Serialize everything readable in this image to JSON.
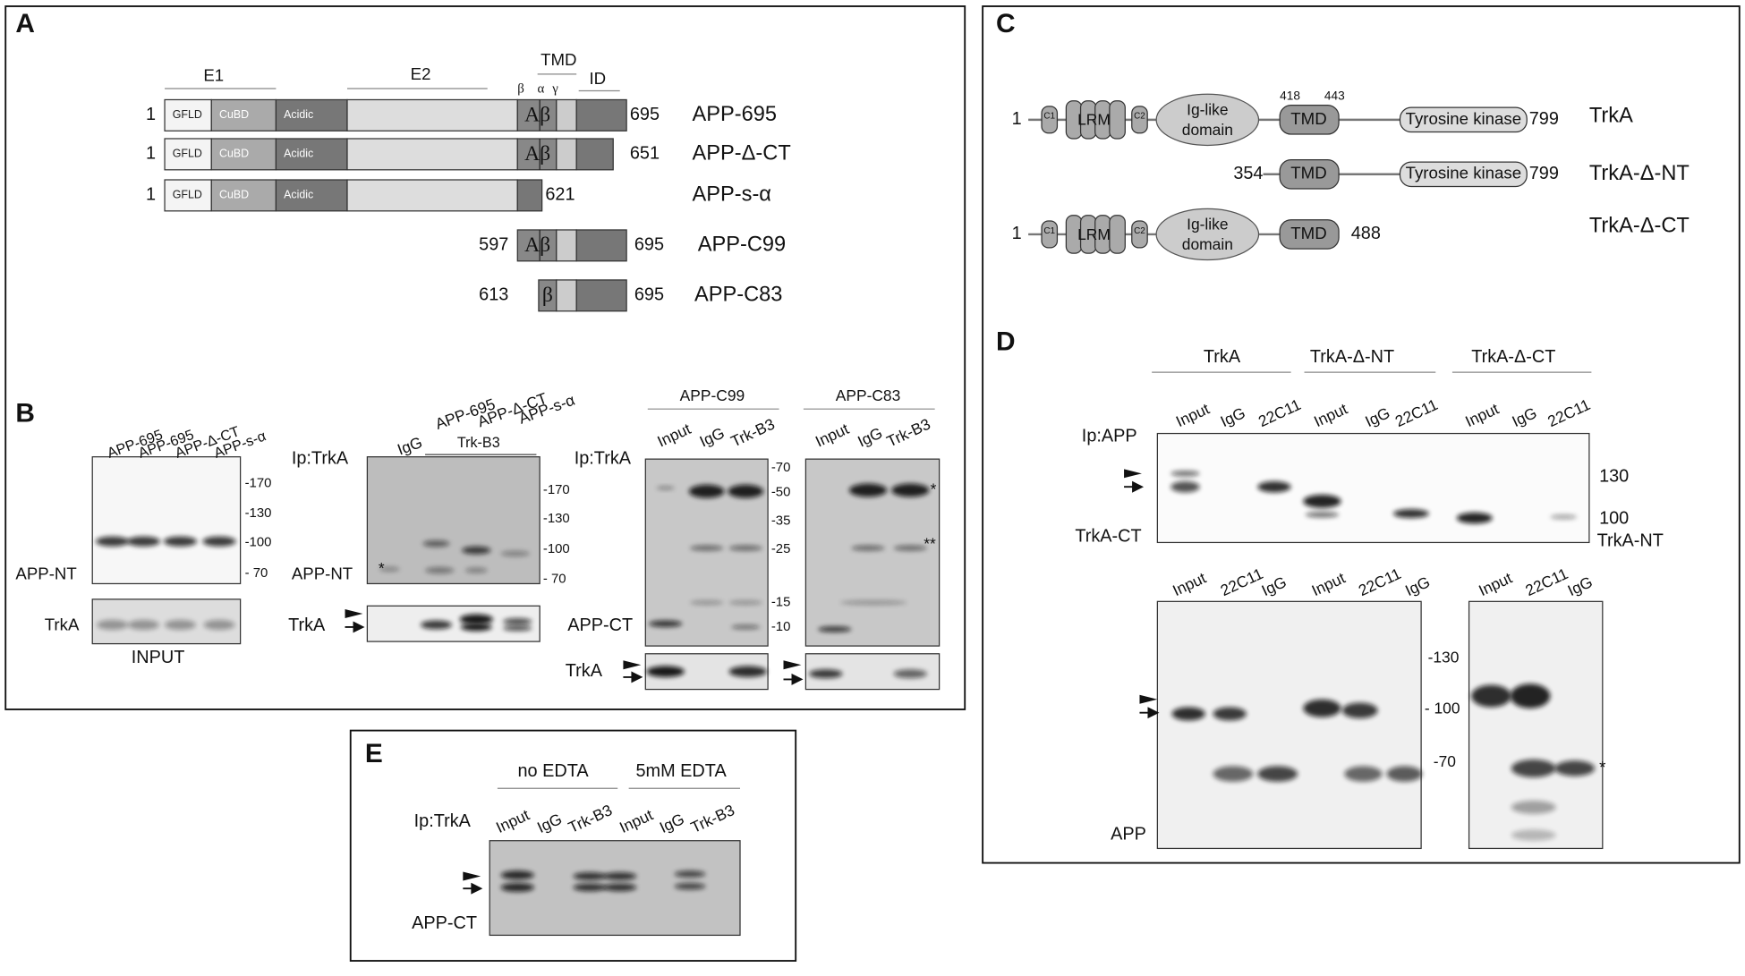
{
  "panel_a": {
    "letter": "A",
    "regions": {
      "e1": "E1",
      "e2": "E2",
      "tmd": "TMD",
      "id": "ID",
      "beta": "β",
      "alpha": "α",
      "gamma": "γ"
    },
    "domains": {
      "gfld": "GFLD",
      "cubd": "CuBD",
      "acidic": "Acidic",
      "abeta": "Aβ",
      "beta": "β"
    },
    "constructs": [
      {
        "start": 1,
        "end": 695,
        "name": "APP-695"
      },
      {
        "start": 1,
        "end": 651,
        "name": "APP-Δ-CT"
      },
      {
        "start": 1,
        "end": 621,
        "name": "APP-s-α"
      },
      {
        "start": 597,
        "end": 695,
        "name": "APP-C99"
      },
      {
        "start": 613,
        "end": 695,
        "name": "APP-C83"
      }
    ]
  },
  "panel_b": {
    "letter": "B",
    "input": {
      "lanes": [
        "APP-695",
        "APP-695",
        "APP-Δ-CT",
        "APP-s-α"
      ],
      "markers": [
        "-170",
        "-130",
        "-100",
        "- 70"
      ],
      "band_label": "APP-NT",
      "trka_label": "TrkA",
      "caption": "INPUT"
    },
    "ip": {
      "ip_label": "Ip:TrkA",
      "lanes": [
        "IgG",
        "APP-695",
        "APP-Δ-CT",
        "APP-s-α"
      ],
      "group": "Trk-B3",
      "markers": [
        "-170",
        "-130",
        "-100",
        "- 70"
      ],
      "band_label": "APP-NT",
      "star": "*",
      "trka_label": "TrkA"
    },
    "ct": {
      "ip_label": "Ip:TrkA",
      "groups": [
        "APP-C99",
        "APP-C83"
      ],
      "lanes": [
        "Input",
        "IgG",
        "Trk-B3"
      ],
      "markers": [
        "-70",
        "-50",
        "-35",
        "-25",
        "-15",
        "-10"
      ],
      "band_label": "APP-CT",
      "trka_label": "TrkA",
      "star1": "*",
      "star2": "**"
    }
  },
  "panel_c": {
    "letter": "C",
    "c1": "C1",
    "lrm": "LRM",
    "c2": "C2",
    "ig_like": [
      "Ig-like",
      "domain"
    ],
    "tmd": "TMD",
    "tk": "Tyrosine kinase",
    "rows": [
      {
        "start": 1,
        "end": 799,
        "name": "TrkA",
        "tmd_start": 418,
        "tmd_end": 443
      },
      {
        "start": 354,
        "end": 799,
        "name": "TrkA-Δ-NT"
      },
      {
        "start": 1,
        "end": 488,
        "name": "TrkA-Δ-CT"
      }
    ]
  },
  "panel_d": {
    "letter": "D",
    "groups": [
      "TrkA",
      "TrkA-Δ-NT",
      "TrkA-Δ-CT"
    ],
    "top": {
      "lanes": [
        "Input",
        "IgG",
        "22C11"
      ],
      "ip_label": "Ip:APP",
      "markers": [
        "130",
        "100"
      ],
      "left_label": "TrkA-CT",
      "right_label": "TrkA-NT"
    },
    "bottom": {
      "lanes": [
        "Input",
        "22C11",
        "IgG"
      ],
      "markers": [
        "-130",
        "- 100",
        "-70"
      ],
      "label": "APP",
      "star": "*"
    }
  },
  "panel_e": {
    "letter": "E",
    "groups": [
      "no EDTA",
      "5mM EDTA"
    ],
    "ip_label": "Ip:TrkA",
    "lanes": [
      "Input",
      "IgG",
      "Trk-B3"
    ],
    "band_label": "APP-CT"
  }
}
